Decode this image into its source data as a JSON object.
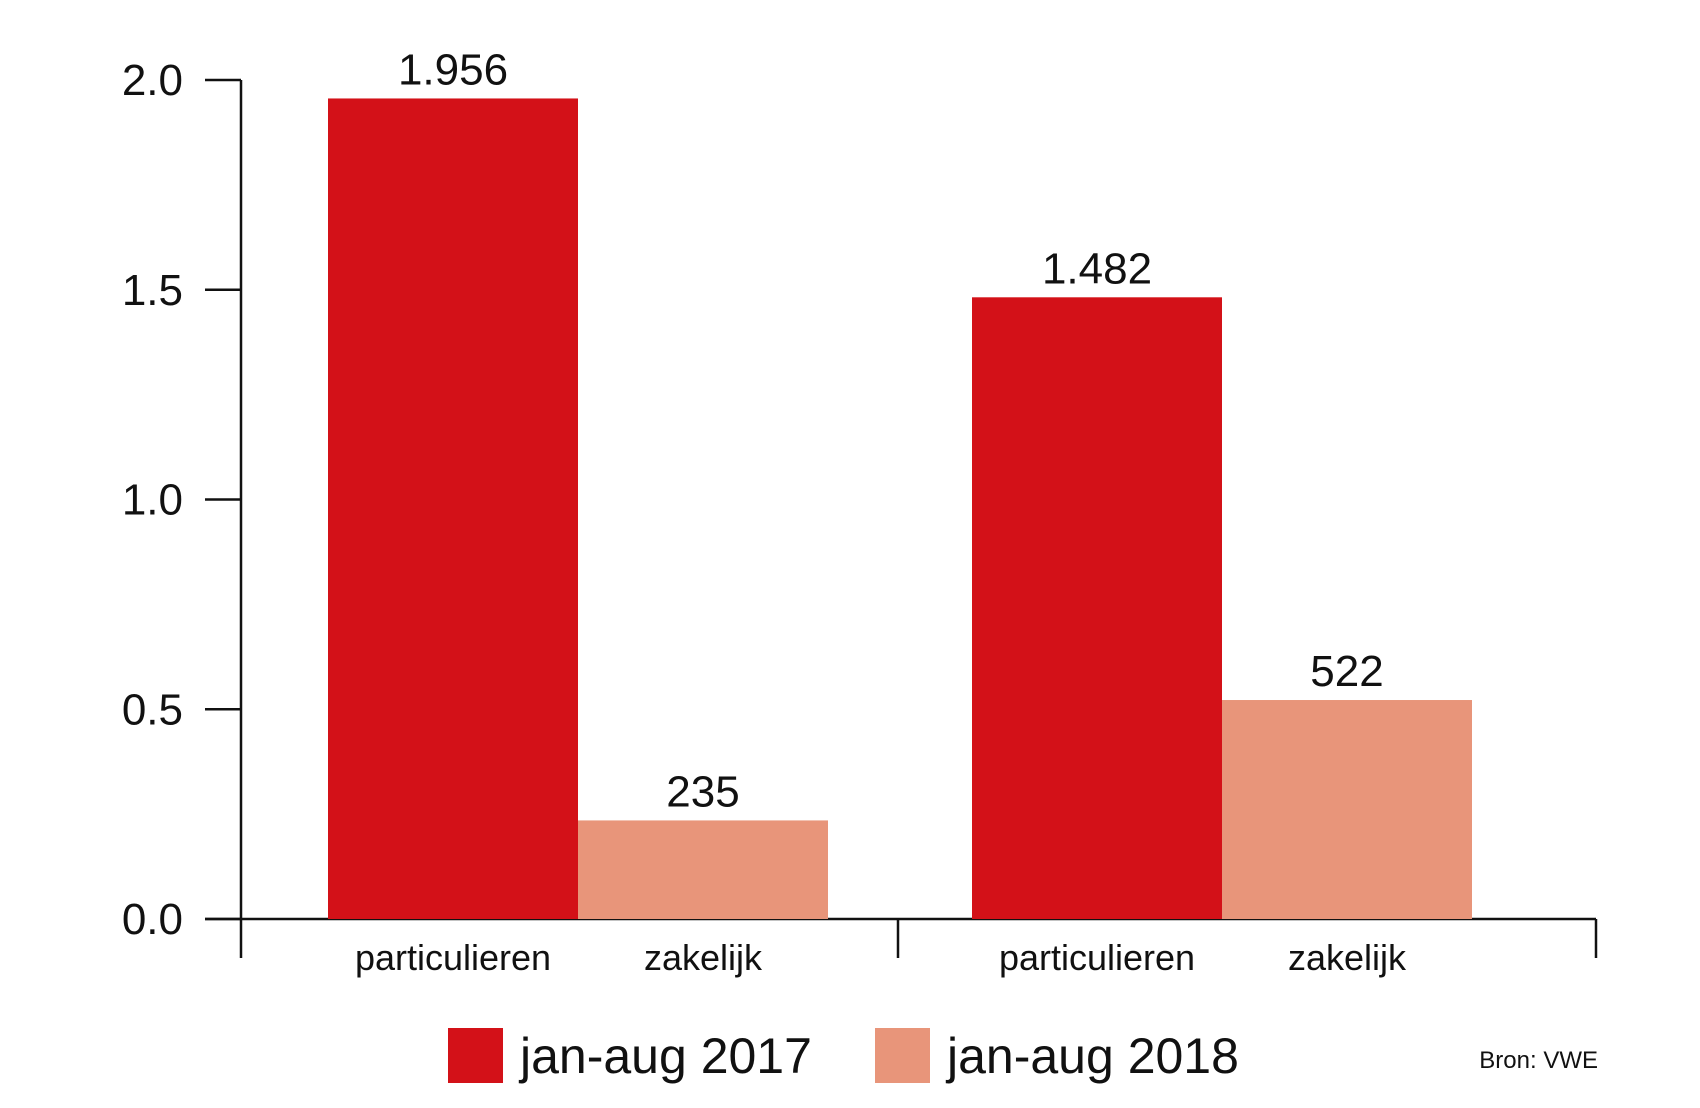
{
  "chart_data": {
    "type": "bar",
    "title": "",
    "xlabel": "",
    "ylabel": "",
    "ylim": [
      0,
      2.0
    ],
    "yticks": [
      "0.0",
      "0.5",
      "1.0",
      "1.5",
      "2.0"
    ],
    "grid": false,
    "legend_position": "bottom",
    "groups": [
      {
        "series": "jan-aug 2017",
        "bars": [
          {
            "category": "particulieren",
            "value": 1.956,
            "label": "1.956",
            "color": "#d31118"
          },
          {
            "category": "zakelijk",
            "value": 0.235,
            "label": "235",
            "color": "#e8957a"
          }
        ]
      },
      {
        "series": "jan-aug 2018",
        "bars": [
          {
            "category": "particulieren",
            "value": 1.482,
            "label": "1.482",
            "color": "#d31118"
          },
          {
            "category": "zakelijk",
            "value": 0.522,
            "label": "522",
            "color": "#e8957a"
          }
        ]
      }
    ],
    "legend": [
      {
        "label": "jan-aug 2017",
        "color": "#d31118"
      },
      {
        "label": "jan-aug 2018",
        "color": "#e8957a"
      }
    ],
    "source": "Bron: VWE"
  }
}
